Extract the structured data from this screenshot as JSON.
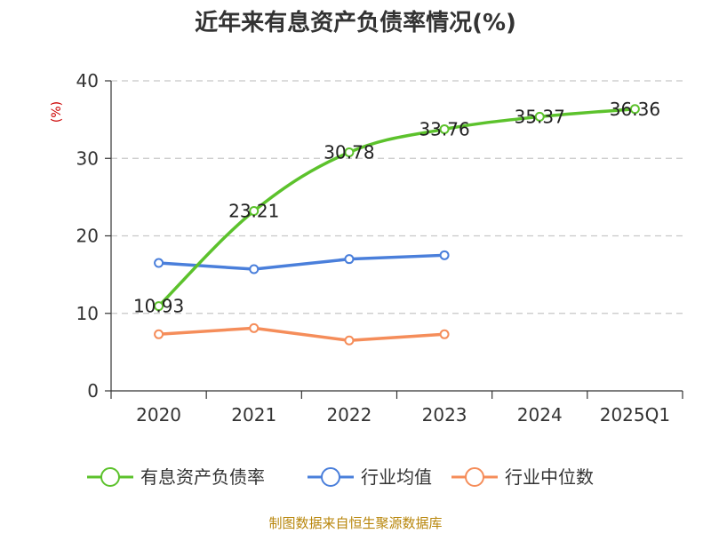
{
  "chart_data": {
    "type": "line",
    "title": "近年来有息资产负债率情况(%)",
    "ylabel": "(%)",
    "xlabel": "",
    "categories": [
      "2020",
      "2021",
      "2022",
      "2023",
      "2024",
      "2025Q1"
    ],
    "ylim": [
      0,
      40
    ],
    "yticks": [
      0,
      10,
      20,
      30,
      40
    ],
    "grid": true,
    "legend_position": "bottom",
    "series": [
      {
        "name": "有息资产负债率",
        "color": "#5cc22c",
        "values": [
          10.93,
          23.21,
          30.78,
          33.76,
          35.37,
          36.36
        ],
        "labels": [
          "10.93",
          "23.21",
          "30.78",
          "33.76",
          "35.37",
          "36.36"
        ]
      },
      {
        "name": "行业均值",
        "color": "#4a7fdb",
        "values": [
          16.5,
          15.7,
          17.0,
          17.5,
          null,
          null
        ]
      },
      {
        "name": "行业中位数",
        "color": "#f58d5a",
        "values": [
          7.3,
          8.1,
          6.5,
          7.3,
          null,
          null
        ]
      }
    ]
  },
  "source": "制图数据来自恒生聚源数据库"
}
